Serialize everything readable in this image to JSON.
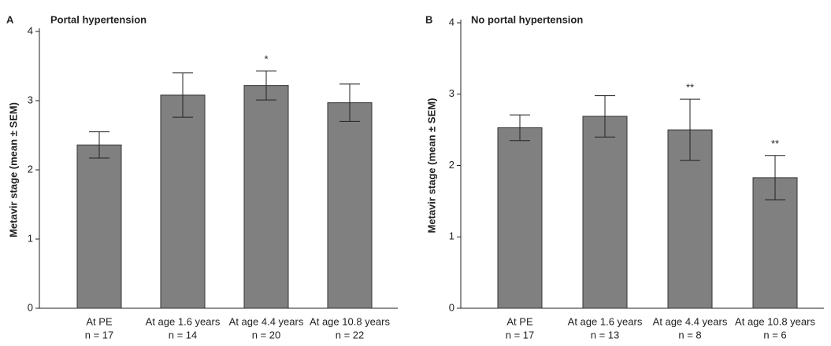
{
  "chart_data": [
    {
      "type": "bar",
      "panel": "A",
      "title": "Portal hypertension",
      "ylabel": "Metavir stage (mean ± SEM)",
      "categories": [
        "At PE",
        "At age 1.6 years",
        "At age 4.4 years",
        "At age 10.8 years"
      ],
      "sample_sizes": [
        "n = 17",
        "n = 14",
        "n = 20",
        "n = 22"
      ],
      "values": [
        2.36,
        3.08,
        3.22,
        2.97
      ],
      "errors": [
        0.19,
        0.32,
        0.21,
        0.27
      ],
      "annotations": [
        {
          "text": "*",
          "category": "At age 4.4 years"
        }
      ],
      "color": "#808080",
      "annotation_color": "#111111",
      "ylim": [
        0,
        4
      ],
      "yticks": [
        0,
        1,
        2,
        3,
        4
      ]
    },
    {
      "type": "bar",
      "panel": "B",
      "title": "No portal hypertension",
      "ylabel": "Metavir stage (mean ± SEM)",
      "categories": [
        "At PE",
        "At age 1.6 years",
        "At age 4.4 years",
        "At age 10.8 years"
      ],
      "sample_sizes": [
        "n = 17",
        "n = 13",
        "n = 8",
        "n = 6"
      ],
      "values": [
        2.53,
        2.69,
        2.5,
        1.83
      ],
      "errors": [
        0.18,
        0.29,
        0.43,
        0.31
      ],
      "annotations": [
        {
          "text": "**",
          "category": "At age 4.4 years"
        },
        {
          "text": "**",
          "category": "At age 10.8 years"
        }
      ],
      "color": "#808080",
      "annotation_color": "#777777",
      "ylim": [
        0,
        4
      ],
      "yticks": [
        0,
        1,
        2,
        3,
        4
      ]
    }
  ]
}
